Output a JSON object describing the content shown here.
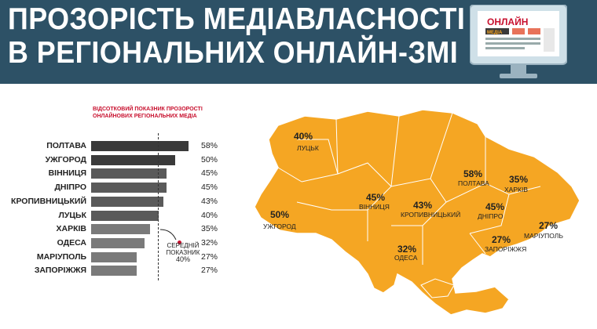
{
  "header": {
    "title_line1": "ПРОЗОРІСТЬ МЕДІАВЛАСНОСТІ",
    "title_line2": "В РЕГІОНАЛЬНИХ ОНЛАЙН-ЗМІ",
    "monitor_text": "ОНЛАЙН",
    "monitor_badge": "МЕДІА"
  },
  "colors": {
    "header_bg": "#2d5166",
    "bar_dark": "#3a3a3a",
    "bar_mid": "#5a5a5a",
    "bar_light": "#7a7a7a",
    "map_fill": "#f5a623",
    "accent_red": "#c8102e"
  },
  "chart_data": [
    {
      "type": "bar",
      "orientation": "horizontal",
      "title": "ВІДСОТКОВИЙ ПОКАЗНИК ПРОЗОРОСТІ ОНЛАЙНОВИХ РЕГІОНАЛЬНИХ МЕДІА",
      "categories": [
        "ПОЛТАВА",
        "УЖГОРОД",
        "ВІННИЦЯ",
        "ДНІПРО",
        "КРОПИВНИЦЬКИЙ",
        "ЛУЦЬК",
        "ХАРКІВ",
        "ОДЕСА",
        "МАРІУПОЛЬ",
        "ЗАПОРІЖЖЯ"
      ],
      "values": [
        58,
        50,
        45,
        45,
        43,
        40,
        35,
        32,
        27,
        27
      ],
      "value_labels": [
        "58%",
        "50%",
        "45%",
        "45%",
        "43%",
        "40%",
        "35%",
        "32%",
        "27%",
        "27%"
      ],
      "average": 40,
      "average_label_lines": [
        "СЕРЕДНІЙ",
        "ПОКАЗНИК",
        "40%"
      ],
      "xlim": [
        0,
        60
      ]
    }
  ],
  "map": {
    "cities": [
      {
        "name": "ЛУЦЬК",
        "pct": "40%"
      },
      {
        "name": "УЖГОРОД",
        "pct": "50%"
      },
      {
        "name": "ВІННИЦЯ",
        "pct": "45%"
      },
      {
        "name": "КРОПИВНИЦЬКИЙ",
        "pct": "43%"
      },
      {
        "name": "ПОЛТАВА",
        "pct": "58%"
      },
      {
        "name": "ХАРКІВ",
        "pct": "35%"
      },
      {
        "name": "ДНІПРО",
        "pct": "45%"
      },
      {
        "name": "ЗАПОРІЖЖЯ",
        "pct": "27%"
      },
      {
        "name": "МАРІУПОЛЬ",
        "pct": "27%"
      },
      {
        "name": "ОДЕСА",
        "pct": "32%"
      }
    ]
  }
}
